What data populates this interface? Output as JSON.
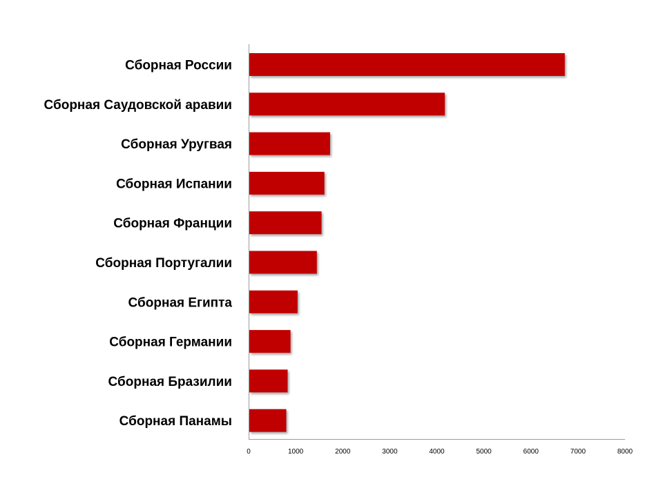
{
  "chart_data": {
    "type": "bar",
    "orientation": "horizontal",
    "categories": [
      "Сборная России",
      "Сборная Саудовской аравии",
      "Сборная Уругвая",
      "Сборная Испании",
      "Сборная Франции",
      "Сборная Португалии",
      "Сборная Египта",
      "Сборная Германии",
      "Сборная Бразилии",
      "Сборная Панамы"
    ],
    "values": [
      6720,
      4170,
      1730,
      1610,
      1550,
      1450,
      1040,
      890,
      830,
      800
    ],
    "xlim": [
      0,
      8000
    ],
    "xticks": [
      "0",
      "1000",
      "2000",
      "3000",
      "4000",
      "5000",
      "6000",
      "7000",
      "8000"
    ],
    "title": "",
    "xlabel": "",
    "ylabel": "",
    "grid": false,
    "legend": "none",
    "bar_color": "#c00000",
    "axis_color": "#9a9a9a"
  }
}
